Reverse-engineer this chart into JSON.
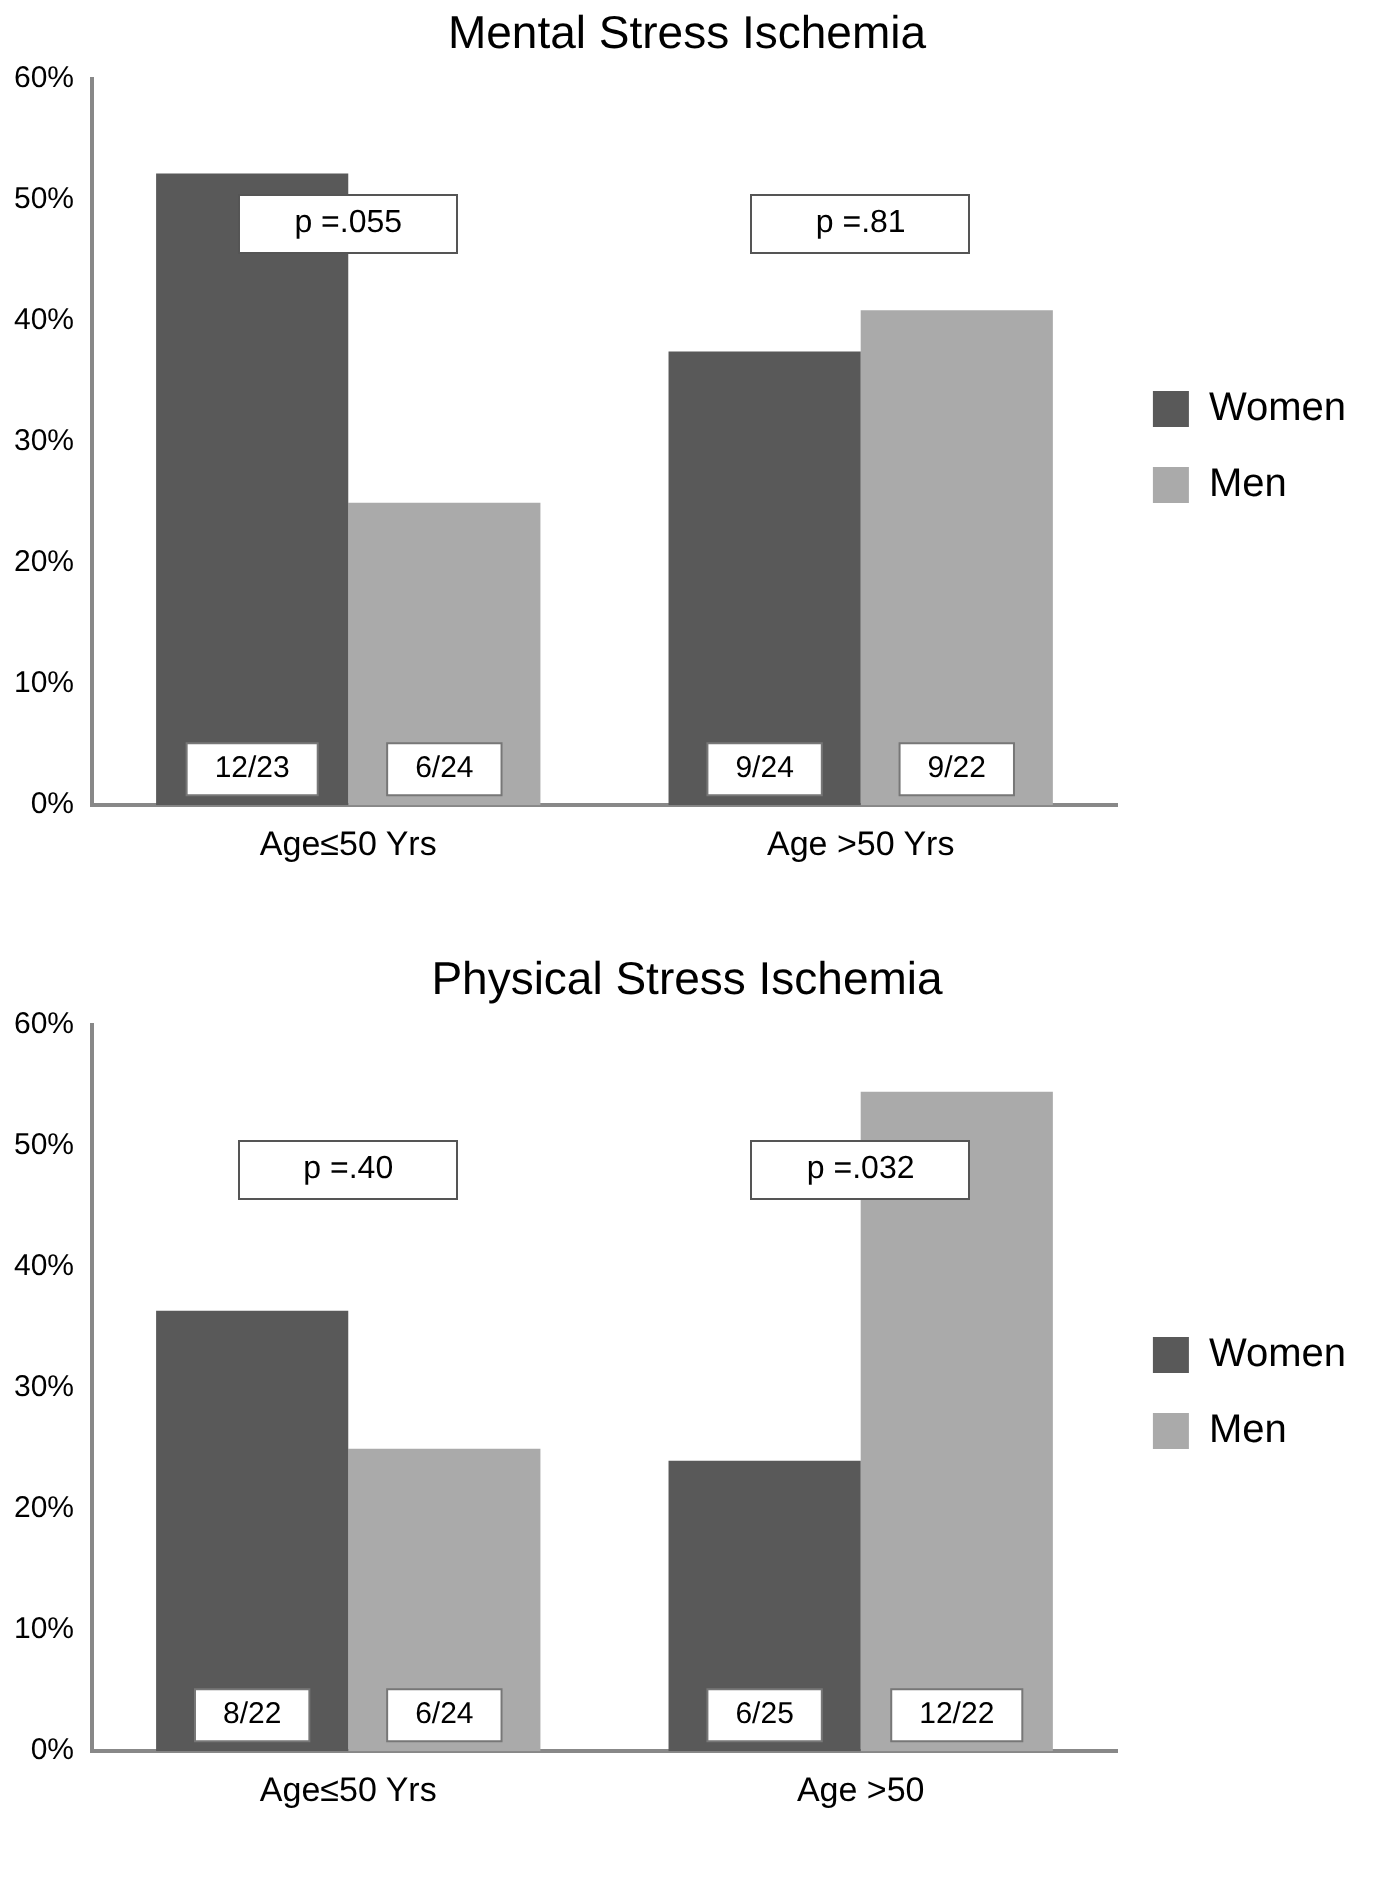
{
  "chart_data": [
    {
      "type": "bar",
      "title": "Mental Stress Ischemia",
      "categories": [
        "Age≤50 Yrs",
        "Age >50 Yrs"
      ],
      "series": [
        {
          "name": "Women",
          "color": "#595959",
          "values": [
            52.2,
            37.5
          ],
          "value_labels": [
            "12/23",
            "9/24"
          ]
        },
        {
          "name": "Men",
          "color": "#aaaaaa",
          "values": [
            25,
            40.9
          ],
          "value_labels": [
            "6/24",
            "9/22"
          ]
        }
      ],
      "ylim": [
        0,
        60
      ],
      "yticks": [
        {
          "value": 0,
          "label": "0%"
        },
        {
          "value": 10,
          "label": "10%"
        },
        {
          "value": 20,
          "label": "20%"
        },
        {
          "value": 30,
          "label": "30%"
        },
        {
          "value": 40,
          "label": "40%"
        },
        {
          "value": 50,
          "label": "50%"
        },
        {
          "value": 60,
          "label": "60%"
        }
      ],
      "annotations": [
        "p =.055",
        "p =.81"
      ],
      "legend": "right",
      "grid": false
    },
    {
      "type": "bar",
      "title": "Physical Stress Ischemia",
      "categories": [
        "Age≤50 Yrs",
        "Age >50"
      ],
      "series": [
        {
          "name": "Women",
          "color": "#595959",
          "values": [
            36.4,
            24
          ],
          "value_labels": [
            "8/22",
            "6/25"
          ]
        },
        {
          "name": "Men",
          "color": "#aaaaaa",
          "values": [
            25,
            54.5
          ],
          "value_labels": [
            "6/24",
            "12/22"
          ]
        }
      ],
      "ylim": [
        0,
        60
      ],
      "yticks": [
        {
          "value": 0,
          "label": "0%"
        },
        {
          "value": 10,
          "label": "10%"
        },
        {
          "value": 20,
          "label": "20%"
        },
        {
          "value": 30,
          "label": "30%"
        },
        {
          "value": 40,
          "label": "40%"
        },
        {
          "value": 50,
          "label": "50%"
        },
        {
          "value": 60,
          "label": "60%"
        }
      ],
      "annotations": [
        "p =.40",
        "p =.032"
      ],
      "legend": "right",
      "grid": false
    }
  ]
}
